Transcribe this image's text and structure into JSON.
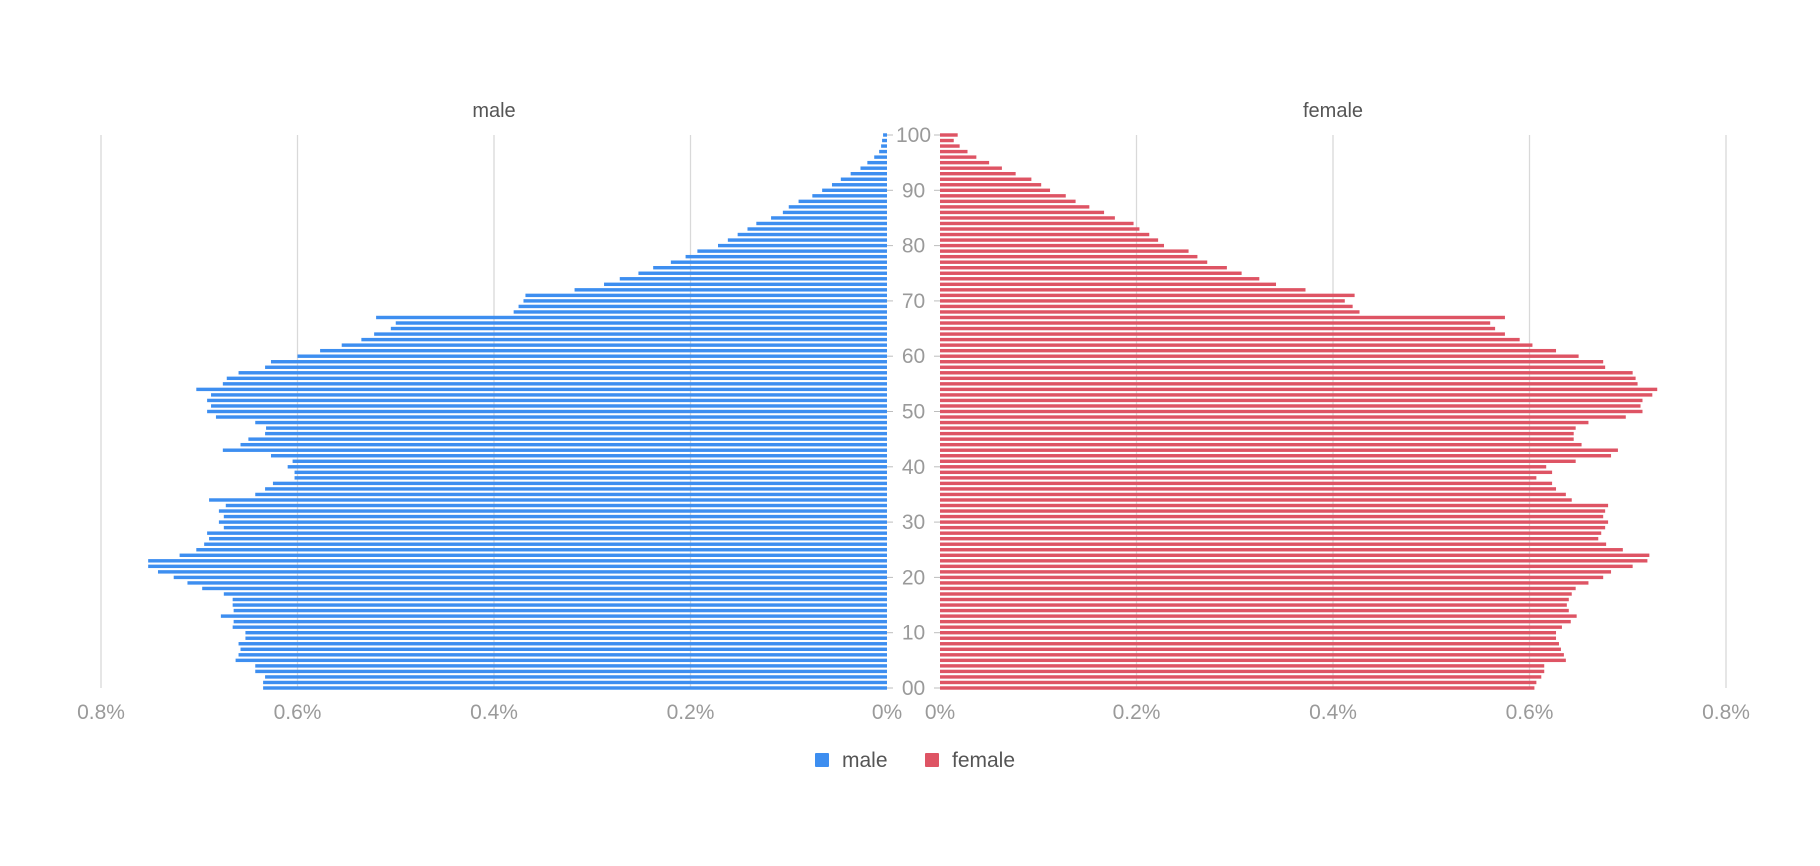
{
  "chart_data": {
    "type": "bar",
    "subtype": "population-pyramid",
    "panels": [
      "male",
      "female"
    ],
    "ages": [
      0,
      1,
      2,
      3,
      4,
      5,
      6,
      7,
      8,
      9,
      10,
      11,
      12,
      13,
      14,
      15,
      16,
      17,
      18,
      19,
      20,
      21,
      22,
      23,
      24,
      25,
      26,
      27,
      28,
      29,
      30,
      31,
      32,
      33,
      34,
      35,
      36,
      37,
      38,
      39,
      40,
      41,
      42,
      43,
      44,
      45,
      46,
      47,
      48,
      49,
      50,
      51,
      52,
      53,
      54,
      55,
      56,
      57,
      58,
      59,
      60,
      61,
      62,
      63,
      64,
      65,
      66,
      67,
      68,
      69,
      70,
      71,
      72,
      73,
      74,
      75,
      76,
      77,
      78,
      79,
      80,
      81,
      82,
      83,
      84,
      85,
      86,
      87,
      88,
      89,
      90,
      91,
      92,
      93,
      94,
      95,
      96,
      97,
      98,
      99,
      100
    ],
    "y_tick_labels": [
      "00",
      "10",
      "20",
      "30",
      "40",
      "50",
      "60",
      "70",
      "80",
      "90",
      "100"
    ],
    "x_tick_labels": [
      "0.8%",
      "0.6%",
      "0.4%",
      "0.2%",
      "0%"
    ],
    "xlim": [
      0,
      0.8
    ],
    "grid": true,
    "legend_position": "bottom",
    "series": [
      {
        "name": "male",
        "color": "#3d8ef0",
        "values": [
          0.635,
          0.635,
          0.633,
          0.643,
          0.643,
          0.663,
          0.66,
          0.658,
          0.66,
          0.653,
          0.653,
          0.666,
          0.665,
          0.678,
          0.665,
          0.666,
          0.666,
          0.675,
          0.697,
          0.712,
          0.726,
          0.742,
          0.752,
          0.752,
          0.72,
          0.703,
          0.695,
          0.69,
          0.692,
          0.675,
          0.68,
          0.675,
          0.68,
          0.673,
          0.69,
          0.643,
          0.633,
          0.625,
          0.603,
          0.603,
          0.61,
          0.605,
          0.627,
          0.676,
          0.658,
          0.65,
          0.633,
          0.632,
          0.643,
          0.683,
          0.692,
          0.688,
          0.692,
          0.688,
          0.703,
          0.676,
          0.672,
          0.66,
          0.633,
          0.627,
          0.6,
          0.577,
          0.555,
          0.535,
          0.522,
          0.505,
          0.5,
          0.52,
          0.38,
          0.375,
          0.37,
          0.368,
          0.318,
          0.288,
          0.272,
          0.253,
          0.238,
          0.22,
          0.205,
          0.193,
          0.172,
          0.162,
          0.152,
          0.142,
          0.133,
          0.118,
          0.106,
          0.1,
          0.09,
          0.076,
          0.066,
          0.056,
          0.047,
          0.037,
          0.027,
          0.02,
          0.013,
          0.008,
          0.006,
          0.005,
          0.004
        ]
      },
      {
        "name": "female",
        "color": "#de5464",
        "values": [
          0.605,
          0.607,
          0.612,
          0.615,
          0.615,
          0.637,
          0.635,
          0.632,
          0.63,
          0.627,
          0.627,
          0.633,
          0.642,
          0.648,
          0.64,
          0.638,
          0.64,
          0.643,
          0.647,
          0.66,
          0.675,
          0.683,
          0.705,
          0.72,
          0.722,
          0.695,
          0.678,
          0.67,
          0.673,
          0.677,
          0.68,
          0.675,
          0.677,
          0.68,
          0.643,
          0.637,
          0.627,
          0.623,
          0.607,
          0.623,
          0.617,
          0.647,
          0.683,
          0.69,
          0.653,
          0.645,
          0.645,
          0.647,
          0.66,
          0.698,
          0.715,
          0.713,
          0.715,
          0.725,
          0.73,
          0.71,
          0.708,
          0.705,
          0.677,
          0.675,
          0.65,
          0.627,
          0.603,
          0.59,
          0.575,
          0.565,
          0.56,
          0.575,
          0.427,
          0.42,
          0.412,
          0.422,
          0.372,
          0.342,
          0.325,
          0.307,
          0.292,
          0.272,
          0.262,
          0.253,
          0.228,
          0.222,
          0.213,
          0.203,
          0.197,
          0.178,
          0.167,
          0.152,
          0.138,
          0.128,
          0.112,
          0.103,
          0.093,
          0.077,
          0.063,
          0.05,
          0.037,
          0.028,
          0.02,
          0.014,
          0.018
        ]
      }
    ]
  }
}
